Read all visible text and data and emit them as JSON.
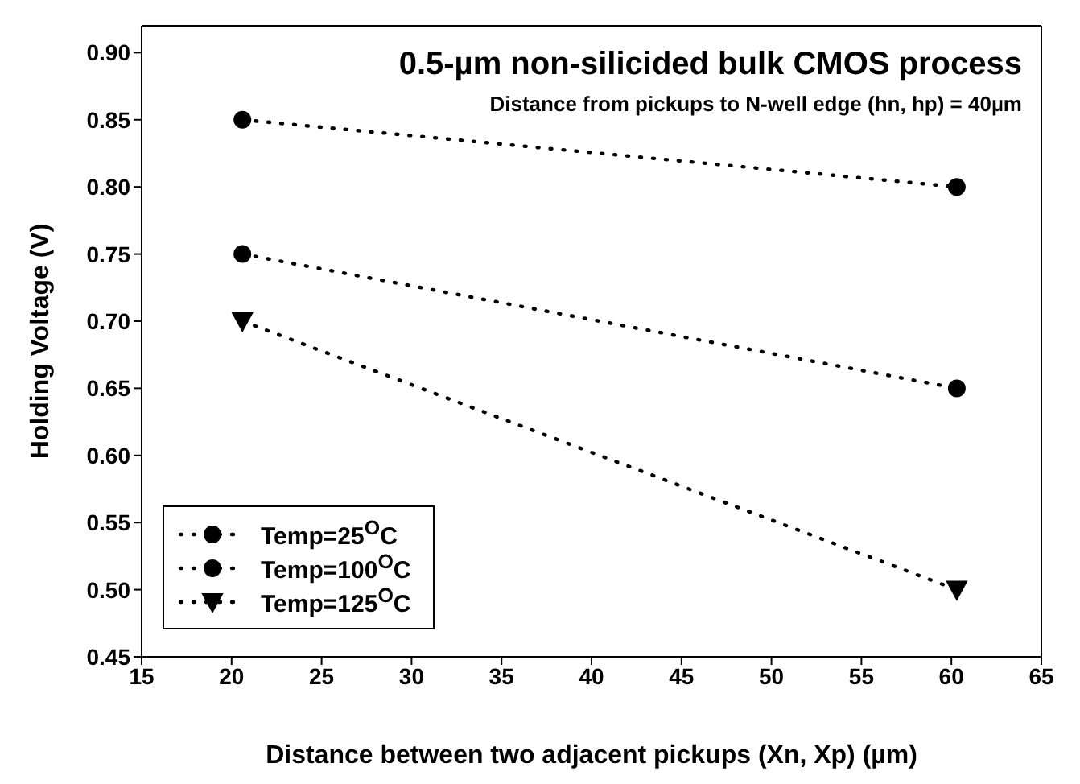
{
  "chart_data": {
    "type": "line",
    "title": "0.5-µm non-silicided bulk CMOS process",
    "subtitle": "Distance from pickups to N-well edge (hn, hp) = 40µm",
    "xlabel": "Distance between two adjacent pickups (Xn, Xp) (µm)",
    "ylabel": "Holding Voltage (V)",
    "x": [
      20.6,
      60.3
    ],
    "series": [
      {
        "name": "Temp=25$^{O}$C",
        "color": "#000000",
        "marker": "circle",
        "values": [
          0.85,
          0.8
        ]
      },
      {
        "name": "Temp=100$^{O}$C",
        "color": "#000000",
        "marker": "circle",
        "values": [
          0.75,
          0.65
        ]
      },
      {
        "name": "Temp=125$^{O}$C",
        "color": "#000000",
        "marker": "triangle",
        "values": [
          0.7,
          0.5
        ]
      }
    ],
    "xlim": [
      15,
      65
    ],
    "xticks": [
      15,
      20,
      25,
      30,
      35,
      40,
      45,
      50,
      55,
      60,
      65
    ],
    "ylim": [
      0.45,
      0.92
    ],
    "yticks": [
      0.45,
      {
        "value": 0.5,
        "label": "0.50"
      },
      0.55,
      {
        "value": 0.6,
        "label": "0.60"
      },
      0.65,
      {
        "value": 0.7,
        "label": "0.70"
      },
      0.75,
      {
        "value": 0.8,
        "label": "0.80"
      },
      0.85,
      {
        "value": 0.9,
        "label": "0.90"
      }
    ],
    "line_style": "dotted",
    "grid": false,
    "legend": "bottom left"
  }
}
